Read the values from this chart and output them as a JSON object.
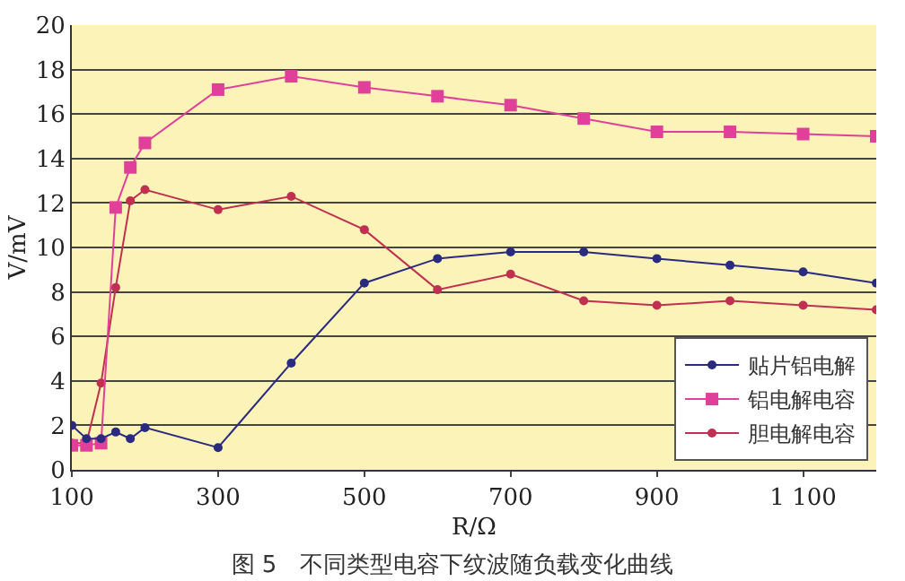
{
  "chart_data": {
    "type": "line",
    "title": "图 5　不同类型电容下纹波随负载变化曲线",
    "xlabel": "R/Ω",
    "ylabel": "V/mV",
    "x": [
      100,
      120,
      140,
      160,
      180,
      200,
      300,
      400,
      500,
      600,
      700,
      800,
      900,
      1000,
      1100,
      1200
    ],
    "series": [
      {
        "name": "贴片铝电解",
        "color": "#2a2a80",
        "marker": "circle",
        "values": [
          2.0,
          1.4,
          1.4,
          1.7,
          1.4,
          1.9,
          1.0,
          4.8,
          8.4,
          9.5,
          9.8,
          9.8,
          9.5,
          9.2,
          8.9,
          8.4
        ]
      },
      {
        "name": "铝电解电容",
        "color": "#e0409a",
        "marker": "square",
        "values": [
          1.1,
          1.1,
          1.2,
          11.8,
          13.6,
          14.7,
          17.1,
          17.7,
          17.2,
          16.8,
          16.4,
          15.8,
          15.2,
          15.2,
          15.1,
          15.0
        ]
      },
      {
        "name": "胆电解电容",
        "color": "#c03050",
        "marker": "circle",
        "values": [
          1.2,
          1.2,
          3.9,
          8.2,
          12.1,
          12.6,
          11.7,
          12.3,
          10.8,
          8.1,
          8.8,
          7.6,
          7.4,
          7.6,
          7.4,
          7.2
        ]
      }
    ],
    "xlim": [
      100,
      1200
    ],
    "xticks": [
      100,
      300,
      500,
      700,
      900,
      {
        "value": 1100,
        "label": "1 100"
      }
    ],
    "ylim": [
      0,
      20
    ],
    "yticks": [
      0,
      2,
      4,
      6,
      8,
      10,
      12,
      14,
      16,
      18,
      20
    ],
    "grid": "y",
    "legend": "bottom right",
    "line_style": "solid"
  }
}
